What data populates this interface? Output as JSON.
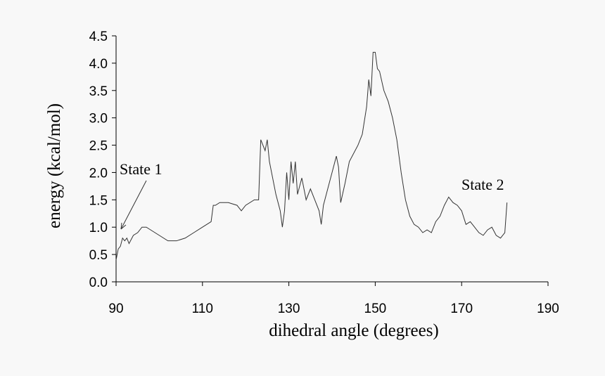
{
  "chart_data": {
    "type": "line",
    "x_label": "dihedral angle (degrees)",
    "y_label": "energy (kcal/mol)",
    "annotations": [
      "State 1",
      "State 2"
    ],
    "xlim": [
      90,
      190
    ],
    "xticks": [
      90,
      110,
      130,
      150,
      170,
      190
    ],
    "ylim": [
      0,
      4.5
    ],
    "yticks": [
      {
        "value": 0,
        "label": "0.0"
      },
      0.5,
      {
        "value": 1,
        "label": "1.0"
      },
      1.5,
      {
        "value": 2,
        "label": "2.0"
      },
      2.5,
      {
        "value": 3,
        "label": "3.0"
      },
      3.5,
      {
        "value": 4,
        "label": "4.0"
      },
      4.5
    ],
    "series": [
      {
        "color": "#333333",
        "x": [
          90,
          90.5,
          91,
          91.5,
          92,
          92.5,
          93,
          94,
          95,
          96,
          97,
          98,
          100,
          102,
          104,
          106,
          108,
          110,
          112,
          112.5,
          113,
          114,
          116,
          118,
          119,
          120,
          122,
          123,
          123.5,
          124,
          124.5,
          125,
          125.5,
          126,
          127,
          128,
          128.5,
          129,
          129.5,
          130,
          130.5,
          131,
          131.5,
          132,
          133,
          134,
          135,
          136,
          137,
          137.5,
          138,
          139,
          140,
          141,
          141.5,
          142,
          143,
          144,
          146,
          147,
          148,
          148.5,
          149,
          149.5,
          150,
          150.5,
          151,
          152,
          153,
          154,
          155,
          156,
          157,
          158,
          159,
          160,
          161,
          162,
          163,
          164,
          165,
          166,
          167,
          168,
          169,
          170,
          171,
          172,
          173,
          174,
          175,
          176,
          177,
          178,
          179,
          180,
          180.5
        ],
        "values": [
          0.4,
          0.6,
          0.65,
          0.8,
          0.75,
          0.8,
          0.7,
          0.85,
          0.9,
          1.0,
          1.0,
          0.95,
          0.85,
          0.75,
          0.75,
          0.8,
          0.9,
          1.0,
          1.1,
          1.4,
          1.4,
          1.45,
          1.45,
          1.4,
          1.3,
          1.4,
          1.5,
          1.5,
          2.6,
          2.5,
          2.4,
          2.6,
          2.2,
          2.0,
          1.6,
          1.3,
          1.0,
          1.3,
          2.0,
          1.5,
          2.2,
          1.8,
          2.2,
          1.6,
          1.9,
          1.5,
          1.7,
          1.5,
          1.3,
          1.05,
          1.4,
          1.7,
          2.0,
          2.3,
          2.1,
          1.45,
          1.8,
          2.2,
          2.5,
          2.7,
          3.2,
          3.7,
          3.4,
          4.2,
          4.2,
          3.9,
          3.85,
          3.5,
          3.3,
          3.0,
          2.6,
          2.0,
          1.5,
          1.2,
          1.05,
          1.0,
          0.9,
          0.95,
          0.9,
          1.1,
          1.2,
          1.4,
          1.55,
          1.45,
          1.4,
          1.3,
          1.05,
          1.1,
          1.0,
          0.9,
          0.85,
          0.95,
          1.0,
          0.85,
          0.8,
          0.9,
          1.45
        ]
      }
    ]
  }
}
